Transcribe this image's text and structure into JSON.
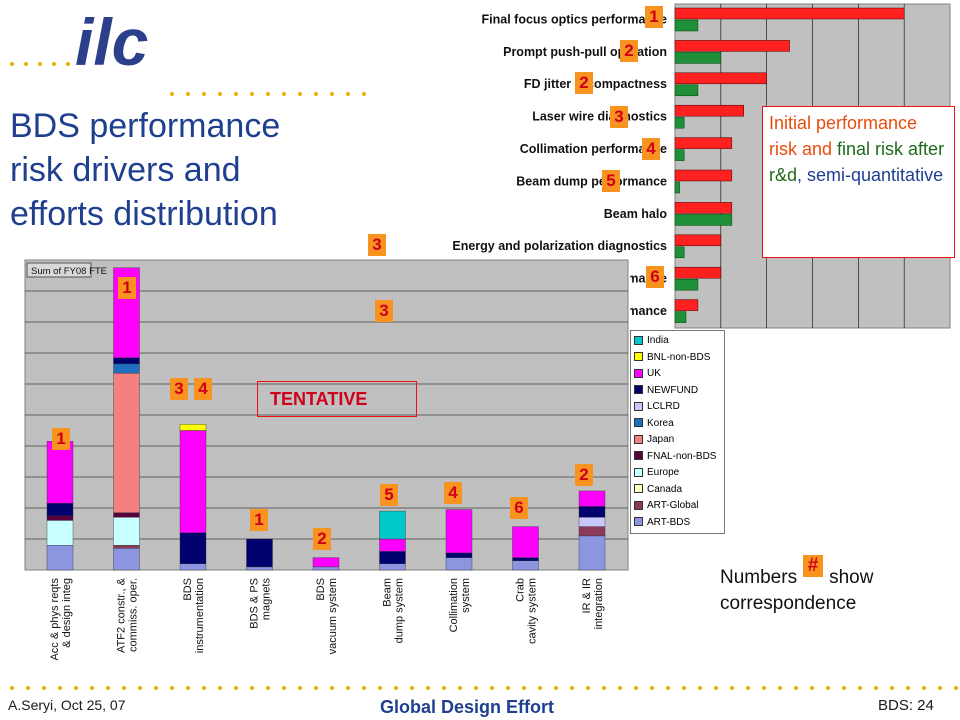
{
  "slide": {
    "logo_text": "ilc",
    "title_lines": [
      "BDS performance",
      "risk drivers and",
      "efforts distribution"
    ],
    "risk_note": {
      "p1": "Initial performance risk and ",
      "p2": "final risk after r&d",
      "p3": ", semi-quantitative"
    },
    "tentative": "TENTATIVE",
    "numbers_note_a": "Numbers",
    "numbers_note_hash": "#",
    "numbers_note_b": "show correspondence",
    "footer_left": "A.Seryi, Oct 25, 07",
    "footer_center": "Global Design Effort",
    "footer_right": "BDS: 24"
  },
  "colors": {
    "accent_blue": "#1f3f8f",
    "logo_blue": "#2b3f8a",
    "dots": "#e8b400",
    "initial": "#ff2020",
    "final": "#1f8f3a"
  },
  "chart_data": [
    {
      "type": "bar",
      "orientation": "horizontal",
      "categories": [
        "Final focus optics performance",
        "Prompt push-pull operation",
        "FD jitter & compactness",
        "Laser wire diagnostics",
        "Collimation performance",
        "Beam dump performance",
        "Beam halo",
        "Energy and polarization diagnostics",
        "Crab cavity system performance",
        "Fast feedback performance"
      ],
      "correspondence_numbers": [
        "1",
        "2",
        "2",
        "3",
        "4",
        "5",
        "",
        "3",
        "6",
        "3"
      ],
      "series": [
        {
          "key": "initial",
          "values": [
            2.5,
            1.25,
            1.0,
            0.75,
            0.62,
            0.62,
            0.62,
            0.5,
            0.5,
            0.25
          ]
        },
        {
          "key": "final",
          "values": [
            0.25,
            0.5,
            0.25,
            0.1,
            0.1,
            0.05,
            0.62,
            0.1,
            0.25,
            0.12
          ]
        }
      ],
      "xlim": [
        0,
        3.0
      ],
      "grid": true
    },
    {
      "type": "bar",
      "stacked": true,
      "title": "Sum of FY08 FTE",
      "categories": [
        "Acc & phys reqts & design integ",
        "ATF2 constr., commiss. & oper.",
        "BDS instrumentation",
        "BDS magnets & PS",
        "BDS vacuum system",
        "Beam dump system",
        "Collimation system",
        "Crab cavity system",
        "IR & IR integration"
      ],
      "correspondence_numbers": [
        [
          "1"
        ],
        [
          "1"
        ],
        [
          "3",
          "4"
        ],
        [
          "1"
        ],
        [
          "2"
        ],
        [
          "5"
        ],
        [
          "4"
        ],
        [
          "6"
        ],
        [
          "2"
        ]
      ],
      "legend_position": "right",
      "ylim": [
        0,
        10
      ],
      "grid": true,
      "series": [
        {
          "name": "India",
          "color": "#00c8c8",
          "values": [
            0,
            0,
            0,
            0,
            0,
            0.9,
            0,
            0,
            0
          ]
        },
        {
          "name": "BNL-non-BDS",
          "color": "#ffff00",
          "values": [
            0,
            0,
            0.2,
            0,
            0,
            0,
            0,
            0,
            0
          ]
        },
        {
          "name": "UK",
          "color": "#ff00ff",
          "values": [
            2.0,
            2.9,
            3.3,
            0,
            0.3,
            0.4,
            1.4,
            1.0,
            0.5
          ]
        },
        {
          "name": "NEWFUND",
          "color": "#00006e",
          "values": [
            0.4,
            0.2,
            1.0,
            0.9,
            0,
            0.4,
            0.15,
            0.1,
            0.35
          ]
        },
        {
          "name": "LCLRD",
          "color": "#c8c8ff",
          "values": [
            0,
            0,
            0,
            0,
            0,
            0,
            0,
            0,
            0.3
          ]
        },
        {
          "name": "Korea",
          "color": "#1f6fbf",
          "values": [
            0,
            0.3,
            0,
            0,
            0,
            0,
            0,
            0,
            0
          ]
        },
        {
          "name": "Japan",
          "color": "#f48080",
          "values": [
            0,
            4.5,
            0,
            0,
            0,
            0,
            0,
            0,
            0
          ]
        },
        {
          "name": "FNAL-non-BDS",
          "color": "#5a003c",
          "values": [
            0.15,
            0.15,
            0,
            0,
            0,
            0,
            0,
            0,
            0
          ]
        },
        {
          "name": "Europe",
          "color": "#c8ffff",
          "values": [
            0.8,
            0.9,
            0,
            0,
            0,
            0,
            0,
            0,
            0
          ]
        },
        {
          "name": "Canada",
          "color": "#ffffc8",
          "values": [
            0,
            0,
            0,
            0,
            0,
            0,
            0,
            0,
            0
          ]
        },
        {
          "name": "ART-Global",
          "color": "#8b3a5a",
          "values": [
            0,
            0.1,
            0,
            0,
            0,
            0,
            0,
            0,
            0.3
          ]
        },
        {
          "name": "ART-BDS",
          "color": "#8c96e0",
          "values": [
            0.8,
            0.7,
            0.2,
            0.1,
            0.1,
            0.2,
            0.4,
            0.3,
            1.1
          ]
        }
      ]
    }
  ]
}
